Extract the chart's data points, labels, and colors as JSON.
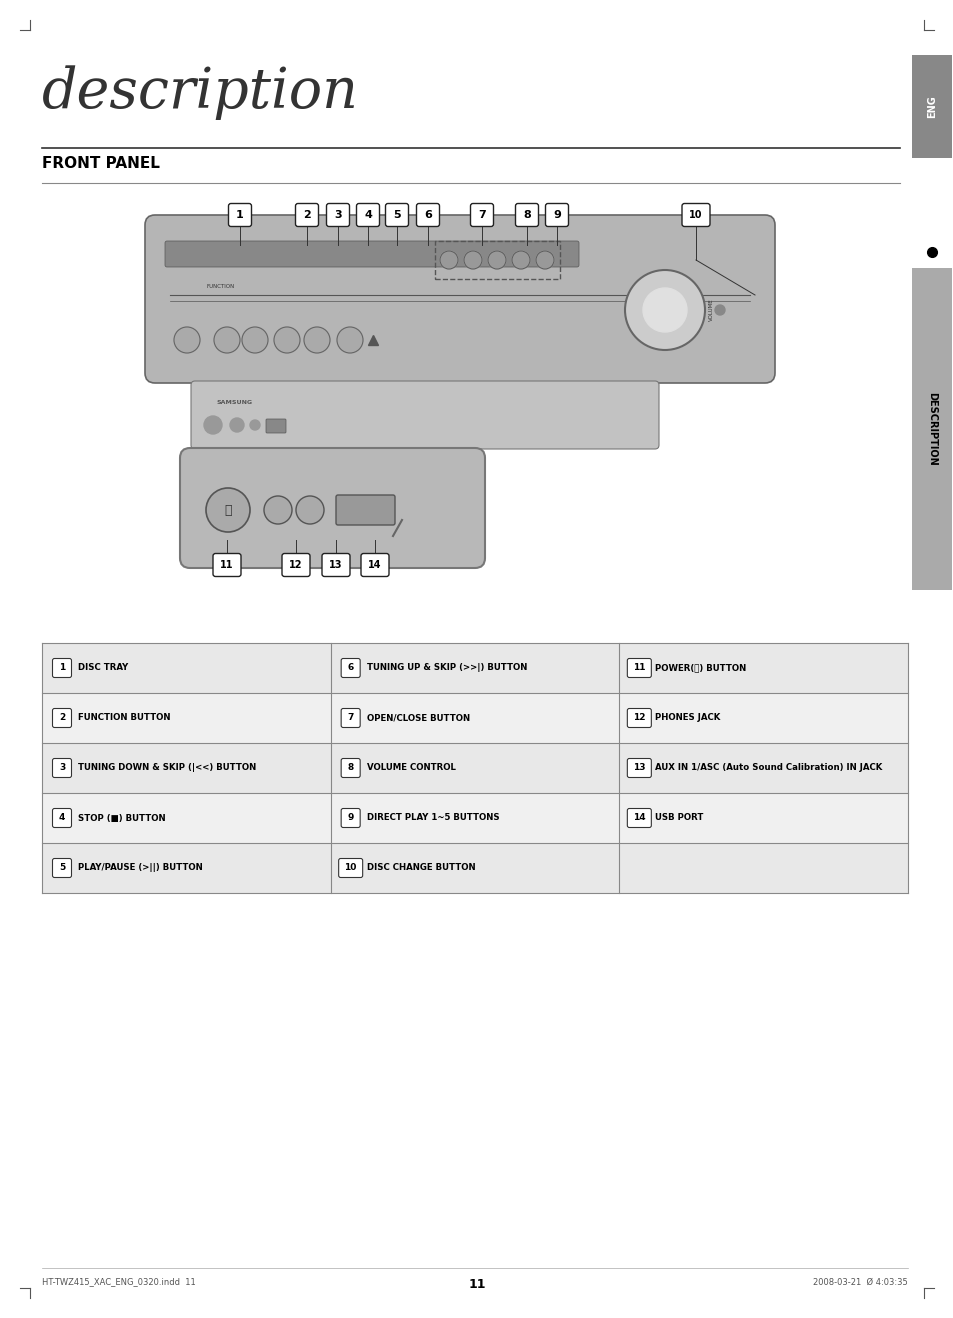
{
  "title": "description",
  "section": "FRONT PANEL",
  "side_label": "ENG",
  "side_label2": "DESCRIPTION",
  "bg_color": "#ffffff",
  "table_bg": "#e8e8e8",
  "table_bg_alt": "#f0f0f0",
  "table_border": "#999999",
  "items": [
    {
      "num": "1",
      "text": "DISC TRAY"
    },
    {
      "num": "2",
      "text": "FUNCTION BUTTON"
    },
    {
      "num": "3",
      "text": "TUNING DOWN & SKIP (|<<) BUTTON"
    },
    {
      "num": "4",
      "text": "STOP (■) BUTTON"
    },
    {
      "num": "5",
      "text": "PLAY/PAUSE (>||) BUTTON"
    },
    {
      "num": "6",
      "text": "TUNING UP & SKIP (>>|) BUTTON"
    },
    {
      "num": "7",
      "text": "OPEN/CLOSE BUTTON"
    },
    {
      "num": "8",
      "text": "VOLUME CONTROL"
    },
    {
      "num": "9",
      "text": "DIRECT PLAY 1~5 BUTTONS"
    },
    {
      "num": "10",
      "text": "DISC CHANGE BUTTON"
    },
    {
      "num": "11",
      "text": "POWER(⏻) BUTTON"
    },
    {
      "num": "12",
      "text": "PHONES JACK"
    },
    {
      "num": "13",
      "text": "AUX IN 1/ASC (Auto Sound Calibration) IN JACK"
    },
    {
      "num": "14",
      "text": "USB PORT"
    }
  ],
  "footer_left": "HT-TWZ415_XAC_ENG_0320.indd  11",
  "footer_right": "2008-03-21  Ø 4:03:35",
  "footer_page": "11"
}
